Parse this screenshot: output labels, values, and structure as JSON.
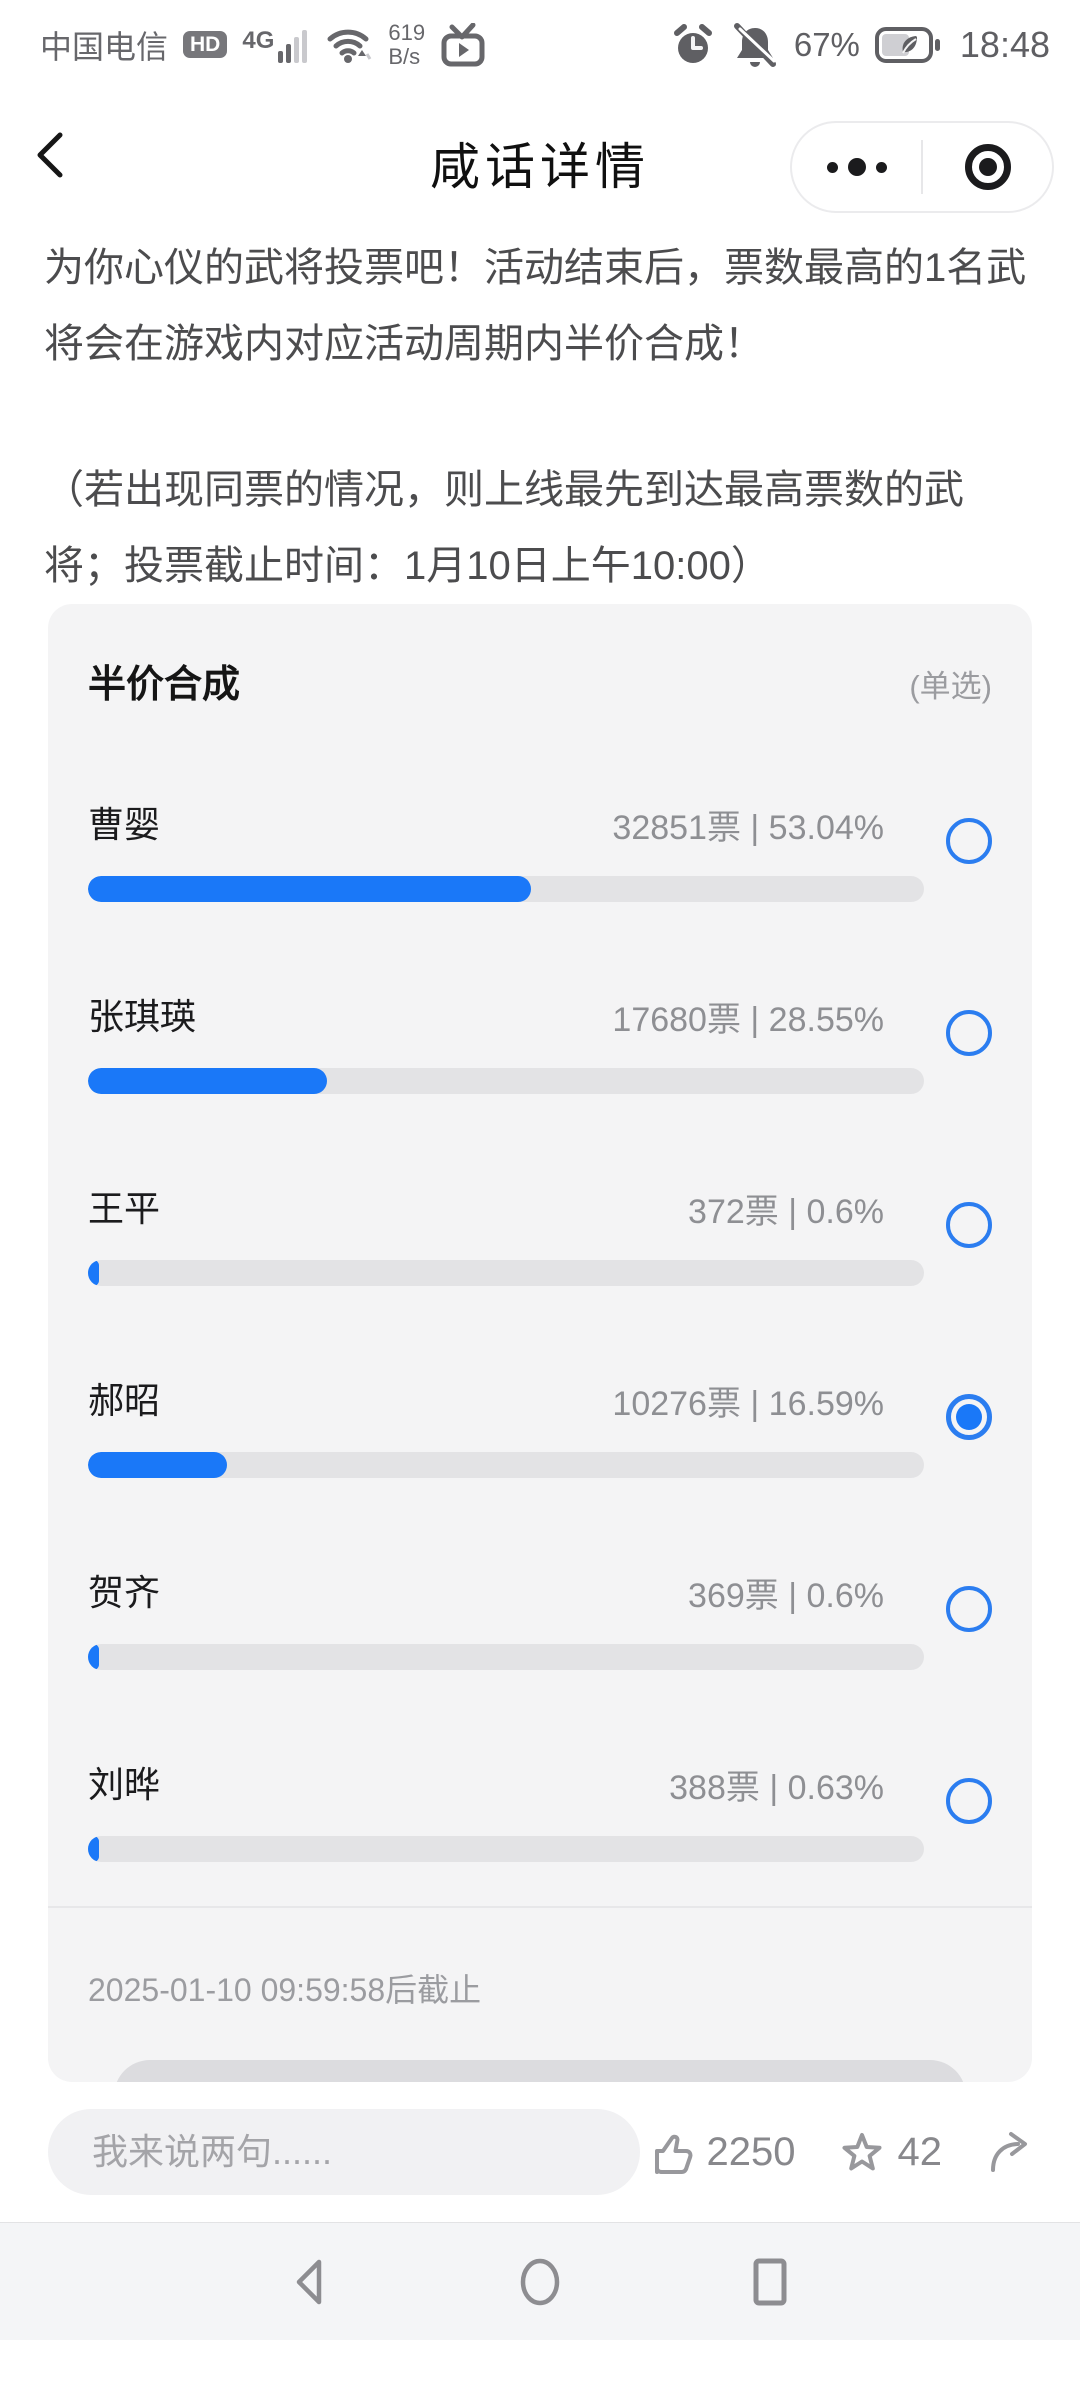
{
  "status_bar": {
    "carrier": "中国电信",
    "hd_badge": "HD",
    "network": "4G",
    "net_speed_value": "619",
    "net_speed_unit": "B/s",
    "battery_percent": "67%",
    "time": "18:48"
  },
  "header": {
    "title": "咸话详情"
  },
  "intro": {
    "para1": "为你心仪的武将投票吧！活动结束后，票数最高的1名武将会在游戏内对应活动周期内半价合成！",
    "para2": "（若出现同票的情况，则上线最先到达最高票数的武将；投票截止时间：1月10日上午10:00）"
  },
  "poll": {
    "title": "半价合成",
    "mode_label": "(单选)",
    "deadline_note": "2025-01-10 09:59:58后截止",
    "options": [
      {
        "name": "曹婴",
        "votes_label": "32851票 | 53.04%",
        "percent": 53.04,
        "selected": false
      },
      {
        "name": "张琪瑛",
        "votes_label": "17680票 | 28.55%",
        "percent": 28.55,
        "selected": false
      },
      {
        "name": "王平",
        "votes_label": "372票 | 0.6%",
        "percent": 0.6,
        "selected": false
      },
      {
        "name": "郝昭",
        "votes_label": "10276票 | 16.59%",
        "percent": 16.59,
        "selected": true
      },
      {
        "name": "贺齐",
        "votes_label": "369票 | 0.6%",
        "percent": 0.6,
        "selected": false
      },
      {
        "name": "刘晔",
        "votes_label": "388票 | 0.63%",
        "percent": 0.63,
        "selected": false
      }
    ]
  },
  "bottom_bar": {
    "comment_placeholder": "我来说两句......",
    "like_count": "2250",
    "favorite_count": "42"
  },
  "colors": {
    "accent_blue": "#1a78f8",
    "bar_track": "#e3e3e5",
    "card_bg": "#f4f4f5"
  }
}
